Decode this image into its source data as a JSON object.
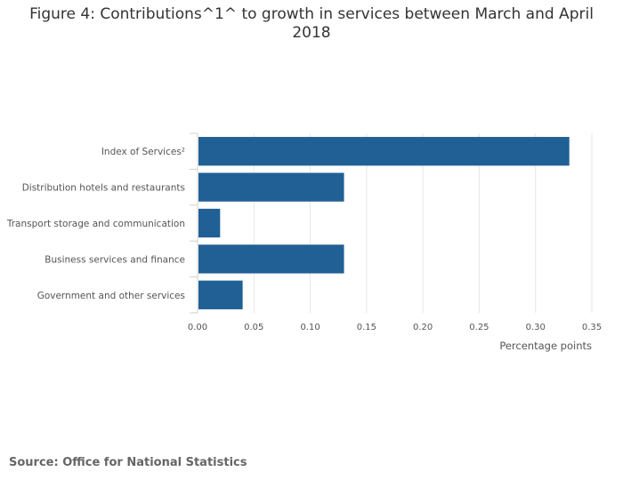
{
  "chart_data": {
    "type": "bar",
    "orientation": "horizontal",
    "title": "Figure 4: Contributions^1^ to growth in services between March and April 2018",
    "xlabel": "Percentage points",
    "ylabel": "",
    "categories": [
      "Index of Services²",
      "Distribution hotels and restaurants",
      "Transport storage and communication",
      "Business services and finance",
      "Government and other services"
    ],
    "values": [
      0.33,
      0.13,
      0.02,
      0.13,
      0.04
    ],
    "xlim": [
      0,
      0.35
    ],
    "xticks": [
      "0.00",
      "0.05",
      "0.10",
      "0.15",
      "0.20",
      "0.25",
      "0.30",
      "0.35"
    ],
    "grid": true,
    "bar_color": "#206095",
    "legend": "none"
  },
  "source": "Source: Office for National Statistics"
}
